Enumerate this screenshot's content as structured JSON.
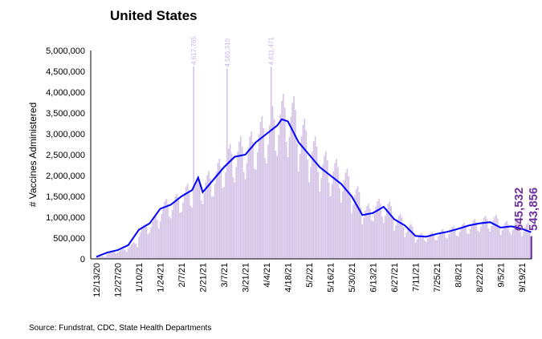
{
  "chart_data": {
    "type": "bar",
    "title": "United States",
    "ylabel": "# Vaccines Administered",
    "xlabel": "",
    "ylim": [
      0,
      5000000
    ],
    "y_ticks": [
      "0",
      "500,000",
      "1,000,000",
      "1,500,000",
      "2,000,000",
      "2,500,000",
      "3,000,000",
      "3,500,000",
      "4,000,000",
      "4,500,000",
      "5,000,000"
    ],
    "x_ticks": [
      "12/13/20",
      "12/27/20",
      "1/10/21",
      "1/24/21",
      "2/7/21",
      "2/21/21",
      "3/7/21",
      "3/21/21",
      "4/4/21",
      "4/18/21",
      "5/2/21",
      "5/16/21",
      "5/30/21",
      "6/13/21",
      "6/27/21",
      "7/11/21",
      "7/25/21",
      "8/8/21",
      "8/22/21",
      "9/5/21",
      "9/19/21"
    ],
    "start_date": "12/13/20",
    "grid": false,
    "legend": "none",
    "colors": {
      "bar": "#d4c3e6",
      "last_bar": "#7030a0",
      "line": "#0000ff",
      "bar_label": "#c9b6e2",
      "end_label": "#7030a0"
    },
    "series": [
      {
        "type": "bar",
        "values": [
          38000,
          45000,
          53000,
          58000,
          60000,
          55000,
          43000,
          113000,
          135000,
          158000,
          173000,
          180000,
          165000,
          128000,
          150000,
          180000,
          210000,
          230000,
          240000,
          220000,
          170000,
          248000,
          297000,
          347000,
          380000,
          396000,
          363000,
          281000,
          525000,
          630000,
          735000,
          805000,
          840000,
          770000,
          595000,
          638000,
          765000,
          893000,
          978000,
          1020000,
          935000,
          723000,
          900000,
          1080000,
          1260000,
          1380000,
          1440000,
          1320000,
          1020000,
          975000,
          1170000,
          1365000,
          1495000,
          1560000,
          1430000,
          1105000,
          1125000,
          1350000,
          1575000,
          1725000,
          1800000,
          1650000,
          1275000,
          1238000,
          4617765,
          1733000,
          1898000,
          1980000,
          1815000,
          1403000,
          1313000,
          1575000,
          1838000,
          2013000,
          2100000,
          1925000,
          1488000,
          1500000,
          1800000,
          2100000,
          2300000,
          2400000,
          2200000,
          1700000,
          1725000,
          2070000,
          4565310,
          2645000,
          2760000,
          2530000,
          1955000,
          1838000,
          2205000,
          2573000,
          2818000,
          2940000,
          2695000,
          2083000,
          1913000,
          2295000,
          2678000,
          2933000,
          3060000,
          2805000,
          2168000,
          2138000,
          2565000,
          2993000,
          3278000,
          3420000,
          3135000,
          2423000,
          2288000,
          2745000,
          3203000,
          4611471,
          3660000,
          3355000,
          2593000,
          2475000,
          2970000,
          3465000,
          3795000,
          3960000,
          3630000,
          2805000,
          2438000,
          2925000,
          3413000,
          3738000,
          3900000,
          3575000,
          2763000,
          2100000,
          2520000,
          2940000,
          3220000,
          3360000,
          3080000,
          2380000,
          1838000,
          2205000,
          2573000,
          2818000,
          2940000,
          2695000,
          2083000,
          1613000,
          1935000,
          2258000,
          2473000,
          2580000,
          2365000,
          1828000,
          1500000,
          1800000,
          2100000,
          2300000,
          2400000,
          2200000,
          1700000,
          1350000,
          1620000,
          1890000,
          2070000,
          2160000,
          1980000,
          1530000,
          1088000,
          1305000,
          1523000,
          1668000,
          1740000,
          1595000,
          1233000,
          825000,
          990000,
          1155000,
          1265000,
          1320000,
          1210000,
          935000,
          900000,
          1080000,
          1260000,
          1380000,
          1440000,
          1320000,
          1020000,
          863000,
          1035000,
          1208000,
          1323000,
          1380000,
          1265000,
          978000,
          675000,
          810000,
          945000,
          1035000,
          1080000,
          990000,
          765000,
          525000,
          630000,
          735000,
          805000,
          840000,
          770000,
          595000,
          390000,
          468000,
          546000,
          598000,
          624000,
          572000,
          442000,
          405000,
          486000,
          567000,
          621000,
          648000,
          594000,
          459000,
          450000,
          540000,
          630000,
          690000,
          720000,
          660000,
          510000,
          495000,
          594000,
          693000,
          759000,
          792000,
          726000,
          561000,
          540000,
          648000,
          756000,
          828000,
          864000,
          792000,
          612000,
          600000,
          720000,
          840000,
          920000,
          960000,
          880000,
          680000,
          645000,
          774000,
          903000,
          989000,
          1032000,
          946000,
          731000,
          660000,
          792000,
          924000,
          1012000,
          1056000,
          968000,
          748000,
          570000,
          684000,
          798000,
          874000,
          912000,
          836000,
          646000,
          585000,
          702000,
          819000,
          897000,
          936000,
          858000,
          663000,
          540000,
          648000,
          756000,
          828000,
          864000,
          645532,
          543856
        ]
      },
      {
        "type": "line",
        "x_dates": [
          "12/13/20",
          "12/20/20",
          "12/27/20",
          "1/3/21",
          "1/10/21",
          "1/17/21",
          "1/24/21",
          "1/31/21",
          "2/7/21",
          "2/14/21",
          "2/18/21",
          "2/21/21",
          "2/28/21",
          "3/7/21",
          "3/14/21",
          "3/21/21",
          "3/28/21",
          "4/4/21",
          "4/11/21",
          "4/14/21",
          "4/18/21",
          "4/25/21",
          "5/2/21",
          "5/9/21",
          "5/16/21",
          "5/23/21",
          "5/30/21",
          "6/6/21",
          "6/13/21",
          "6/20/21",
          "6/27/21",
          "7/4/21",
          "7/11/21",
          "7/18/21",
          "7/25/21",
          "8/1/21",
          "8/8/21",
          "8/15/21",
          "8/22/21",
          "8/29/21",
          "9/5/21",
          "9/12/21",
          "9/19/21",
          "9/25/21"
        ],
        "values": [
          50000,
          150000,
          210000,
          330000,
          700000,
          850000,
          1200000,
          1300000,
          1500000,
          1650000,
          1950000,
          1600000,
          1900000,
          2200000,
          2450000,
          2500000,
          2800000,
          3000000,
          3200000,
          3350000,
          3300000,
          2800000,
          2500000,
          2200000,
          2000000,
          1800000,
          1500000,
          1050000,
          1100000,
          1250000,
          950000,
          800000,
          550000,
          530000,
          600000,
          650000,
          720000,
          800000,
          850000,
          880000,
          750000,
          780000,
          720000,
          640000
        ]
      }
    ],
    "end_labels": [
      "645,532",
      "543,856"
    ]
  },
  "source": "Source: Fundstrat, CDC, State Health Departments"
}
